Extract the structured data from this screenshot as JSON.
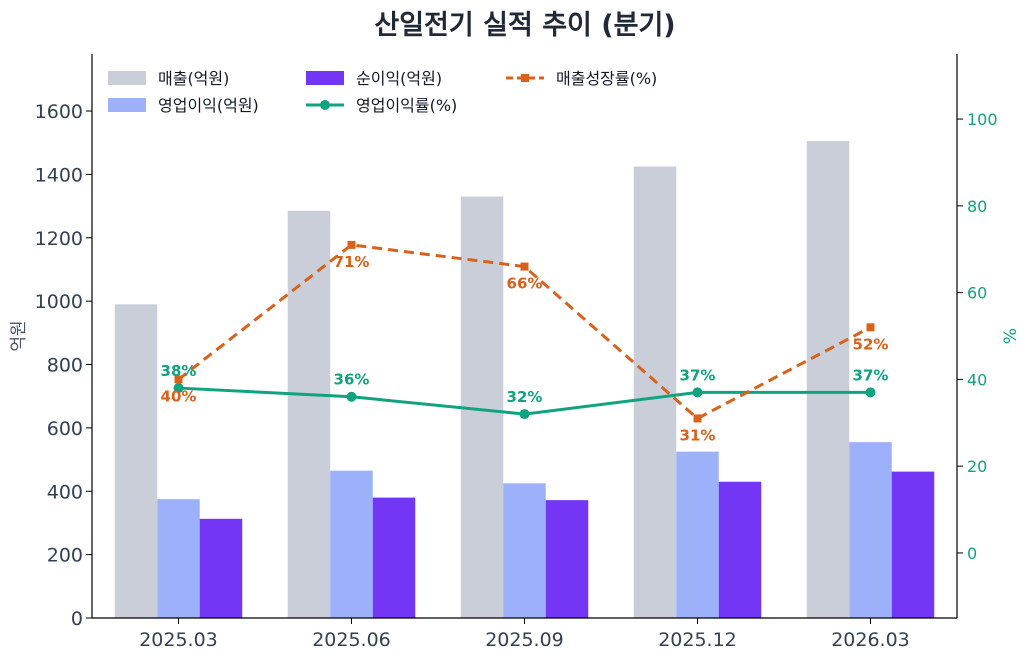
{
  "chart_data": {
    "type": "bar",
    "title": "산일전기 실적 추이 (분기)",
    "categories": [
      "2025.03",
      "2025.06",
      "2025.09",
      "2025.12",
      "2026.03"
    ],
    "y_left": {
      "label": "억원",
      "range": [
        0,
        1780
      ],
      "ticks": [
        0,
        200,
        400,
        600,
        800,
        1000,
        1200,
        1400,
        1600
      ]
    },
    "y_right": {
      "label": "%",
      "range": [
        -15,
        115
      ],
      "ticks": [
        0,
        20,
        40,
        60,
        80,
        100
      ]
    },
    "bars": [
      {
        "name": "매출(억원)",
        "color": "#c9ced8",
        "values": [
          990,
          1285,
          1330,
          1425,
          1505
        ]
      },
      {
        "name": "영업이익(억원)",
        "color": "#9db1fb",
        "values": [
          375,
          465,
          425,
          525,
          555
        ]
      },
      {
        "name": "순이익(억원)",
        "color": "#7336f4",
        "values": [
          313,
          380,
          372,
          430,
          462
        ]
      }
    ],
    "lines": [
      {
        "name": "영업이익률(%)",
        "color": "#10a37f",
        "style": "solid",
        "marker": "circle",
        "axis": "right",
        "values": [
          38,
          36,
          32,
          37,
          37
        ],
        "labels": [
          "38%",
          "36%",
          "32%",
          "37%",
          "37%"
        ]
      },
      {
        "name": "매출성장률(%)",
        "color": "#d9611a",
        "style": "dashed",
        "marker": "square",
        "axis": "right",
        "values": [
          40,
          71,
          66,
          31,
          52
        ],
        "labels": [
          "40%",
          "71%",
          "66%",
          "31%",
          "52%"
        ]
      }
    ],
    "legend": {
      "placement": "top-left"
    },
    "grid": false
  }
}
